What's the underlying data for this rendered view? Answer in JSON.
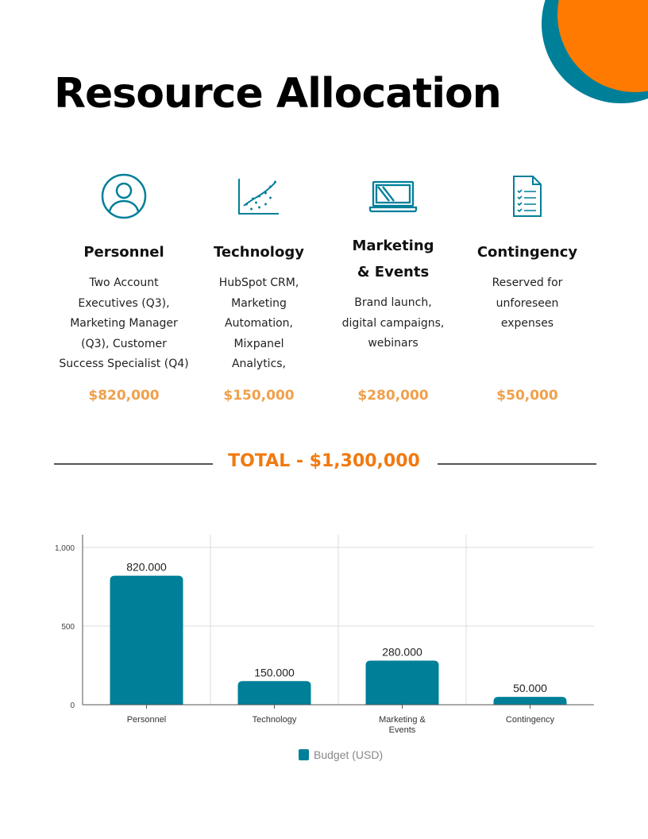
{
  "title": "Resource Allocation",
  "colors": {
    "accent": "#007f99",
    "orange": "#ff7a00",
    "amount": "#f0a04b",
    "total": "#f07a10"
  },
  "categories": [
    {
      "icon": "user-icon",
      "title": [
        "Personnel"
      ],
      "desc": [
        "Two Account",
        "Executives (Q3),",
        "Marketing Manager",
        "(Q3), Customer",
        "Success Specialist (Q4)"
      ],
      "amount": "$820,000"
    },
    {
      "icon": "scatter-chart-icon",
      "title": [
        "Technology"
      ],
      "desc": [
        "HubSpot CRM,",
        "Marketing",
        "Automation,",
        "Mixpanel",
        "Analytics,"
      ],
      "amount": "$150,000"
    },
    {
      "icon": "laptop-icon",
      "title": [
        "Marketing",
        "& Events"
      ],
      "desc": [
        "Brand launch,",
        "digital campaigns,",
        "webinars"
      ],
      "amount": "$280,000"
    },
    {
      "icon": "checklist-document-icon",
      "title": [
        "Contingency"
      ],
      "desc": [
        "Reserved for",
        "unforeseen",
        "expenses"
      ],
      "amount": "$50,000"
    }
  ],
  "total": "TOTAL - $1,300,000",
  "chart_data": {
    "type": "bar",
    "categories": [
      [
        "Personnel"
      ],
      [
        "Technology"
      ],
      [
        "Marketing &",
        "Events"
      ],
      [
        "Contingency"
      ]
    ],
    "values": [
      820,
      150,
      280,
      50
    ],
    "data_labels": [
      "820.000",
      "150.000",
      "280.000",
      "50.000"
    ],
    "yticks": [
      "0",
      "500",
      "1,000"
    ],
    "ylim": [
      0,
      1000
    ],
    "grid": true,
    "series": [
      {
        "name": "Budget (USD)",
        "color": "#007f99"
      }
    ],
    "legend": "bottom"
  }
}
